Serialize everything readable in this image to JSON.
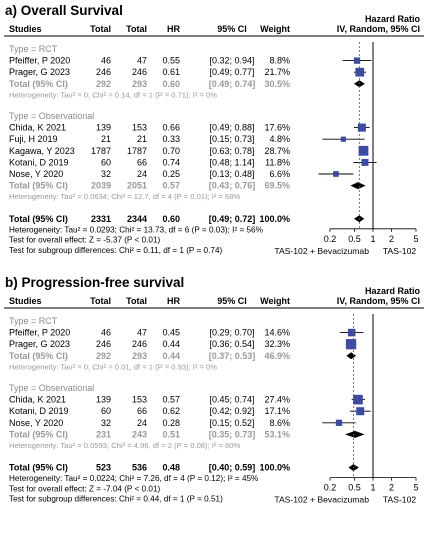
{
  "chart_data": [
    {
      "type": "forest",
      "title": "a) Overall Survival",
      "headers": {
        "studies": "Studies",
        "total_exp": "Total",
        "total_ctrl": "Total",
        "hr": "HR",
        "ci": "95% CI",
        "weight": "Weight",
        "plot_line1": "Hazard Ratio",
        "plot_line2": "IV, Random, 95% CI"
      },
      "groups": [
        {
          "label": "Type = RCT",
          "studies": [
            {
              "name": "Pfeiffer, P 2020",
              "n1": "46",
              "n2": "47",
              "hr_text": "0.55",
              "ci_text": "[0.32; 0.94]",
              "weight_text": "8.8%",
              "hr": 0.55,
              "lo": 0.32,
              "hi": 0.94,
              "weight": 8.8
            },
            {
              "name": "Prager, G 2023",
              "n1": "246",
              "n2": "246",
              "hr_text": "0.61",
              "ci_text": "[0.49; 0.77]",
              "weight_text": "21.7%",
              "hr": 0.61,
              "lo": 0.49,
              "hi": 0.77,
              "weight": 21.7
            }
          ],
          "subtotal": {
            "name": "Total (95% CI)",
            "n1": "292",
            "n2": "293",
            "hr_text": "0.60",
            "ci_text": "[0.49; 0.74]",
            "weight_text": "30.5%",
            "hr": 0.6,
            "lo": 0.49,
            "hi": 0.74
          },
          "heterogeneity": "Heterogeneity: Tau² = 0; Chi² = 0.14, df = 1 (P = 0.71); I² = 0%"
        },
        {
          "label": "Type = Observational",
          "studies": [
            {
              "name": "Chida, K 2021",
              "n1": "139",
              "n2": "153",
              "hr_text": "0.66",
              "ci_text": "[0.49; 0.88]",
              "weight_text": "17.6%",
              "hr": 0.66,
              "lo": 0.49,
              "hi": 0.88,
              "weight": 17.6
            },
            {
              "name": "Fuji, H 2019",
              "n1": "21",
              "n2": "21",
              "hr_text": "0.33",
              "ci_text": "[0.15; 0.73]",
              "weight_text": "4.8%",
              "hr": 0.33,
              "lo": 0.15,
              "hi": 0.73,
              "weight": 4.8
            },
            {
              "name": "Kagawa, Y 2023",
              "n1": "1787",
              "n2": "1787",
              "hr_text": "0.70",
              "ci_text": "[0.63; 0.78]",
              "weight_text": "28.7%",
              "hr": 0.7,
              "lo": 0.63,
              "hi": 0.78,
              "weight": 28.7
            },
            {
              "name": "Kotani, D 2019",
              "n1": "60",
              "n2": "66",
              "hr_text": "0.74",
              "ci_text": "[0.48; 1.14]",
              "weight_text": "11.8%",
              "hr": 0.74,
              "lo": 0.48,
              "hi": 1.14,
              "weight": 11.8
            },
            {
              "name": "Nose, Y 2020",
              "n1": "32",
              "n2": "24",
              "hr_text": "0.25",
              "ci_text": "[0.13; 0.48]",
              "weight_text": "6.6%",
              "hr": 0.25,
              "lo": 0.13,
              "hi": 0.48,
              "weight": 6.6
            }
          ],
          "subtotal": {
            "name": "Total (95% CI)",
            "n1": "2039",
            "n2": "2051",
            "hr_text": "0.57",
            "ci_text": "[0.43; 0.76]",
            "weight_text": "69.5%",
            "hr": 0.57,
            "lo": 0.43,
            "hi": 0.76
          },
          "heterogeneity": "Heterogeneity: Tau² = 0.0634; Chi² = 12.7, df = 4 (P = 0.01); I² = 68%"
        }
      ],
      "overall": {
        "name": "Total (95% CI)",
        "n1": "2331",
        "n2": "2344",
        "hr_text": "0.60",
        "ci_text": "[0.49; 0.72]",
        "weight_text": "100.0%",
        "hr": 0.6,
        "lo": 0.49,
        "hi": 0.72
      },
      "footer": [
        "Heterogeneity: Tau² = 0.0293; Chi² = 13.73, df = 6 (P = 0.03); I² = 56%",
        "Test for overall effect: Z = -5.37 (P < 0.01)",
        "Test for subgroup differences: Chi² = 0.11, df = 1 (P = 0.74)"
      ],
      "axis": {
        "scale": "log",
        "range": [
          0.2,
          5
        ],
        "ticks": [
          0.2,
          0.5,
          1,
          2,
          5
        ],
        "tick_labels": [
          "0.2",
          "0.5",
          "1",
          "2",
          "5"
        ]
      },
      "favours": {
        "left": "TAS-102 + Bevacizumab",
        "right": "TAS-102"
      }
    },
    {
      "type": "forest",
      "title": "b) Progression-free survival",
      "headers": {
        "studies": "Studies",
        "total_exp": "Total",
        "total_ctrl": "Total",
        "hr": "HR",
        "ci": "95% CI",
        "weight": "Weight",
        "plot_line1": "Hazard Ratio",
        "plot_line2": "IV, Random, 95% CI"
      },
      "groups": [
        {
          "label": "Type = RCT",
          "studies": [
            {
              "name": "Pfeiffer, P 2020",
              "n1": "46",
              "n2": "47",
              "hr_text": "0.45",
              "ci_text": "[0.29; 0.70]",
              "weight_text": "14.6%",
              "hr": 0.45,
              "lo": 0.29,
              "hi": 0.7,
              "weight": 14.6
            },
            {
              "name": "Prager, G 2023",
              "n1": "246",
              "n2": "246",
              "hr_text": "0.44",
              "ci_text": "[0.36; 0.54]",
              "weight_text": "32.3%",
              "hr": 0.44,
              "lo": 0.36,
              "hi": 0.54,
              "weight": 32.3
            }
          ],
          "subtotal": {
            "name": "Total (95% CI)",
            "n1": "292",
            "n2": "293",
            "hr_text": "0.44",
            "ci_text": "[0.37; 0.53]",
            "weight_text": "46.9%",
            "hr": 0.44,
            "lo": 0.37,
            "hi": 0.53
          },
          "heterogeneity": "Heterogeneity: Tau² = 0; Chi² = 0.01, df = 1 (P = 0.93); I² = 0%"
        },
        {
          "label": "Type = Observational",
          "studies": [
            {
              "name": "Chida, K 2021",
              "n1": "139",
              "n2": "153",
              "hr_text": "0.57",
              "ci_text": "[0.45; 0.74]",
              "weight_text": "27.4%",
              "hr": 0.57,
              "lo": 0.45,
              "hi": 0.74,
              "weight": 27.4
            },
            {
              "name": "Kotani, D 2019",
              "n1": "60",
              "n2": "66",
              "hr_text": "0.62",
              "ci_text": "[0.42; 0.92]",
              "weight_text": "17.1%",
              "hr": 0.62,
              "lo": 0.42,
              "hi": 0.92,
              "weight": 17.1
            },
            {
              "name": "Nose, Y 2020",
              "n1": "32",
              "n2": "24",
              "hr_text": "0.28",
              "ci_text": "[0.15; 0.52]",
              "weight_text": "8.6%",
              "hr": 0.28,
              "lo": 0.15,
              "hi": 0.52,
              "weight": 8.6
            }
          ],
          "subtotal": {
            "name": "Total (95% CI)",
            "n1": "231",
            "n2": "243",
            "hr_text": "0.51",
            "ci_text": "[0.35; 0.73]",
            "weight_text": "53.1%",
            "hr": 0.51,
            "lo": 0.35,
            "hi": 0.73
          },
          "heterogeneity": "Heterogeneity: Tau² = 0.0593; Chi² = 4.96, df = 2 (P = 0.08); I² = 60%"
        }
      ],
      "overall": {
        "name": "Total (95% CI)",
        "n1": "523",
        "n2": "536",
        "hr_text": "0.48",
        "ci_text": "[0.40; 0.59]",
        "weight_text": "100.0%",
        "hr": 0.48,
        "lo": 0.4,
        "hi": 0.59
      },
      "footer": [
        "Heterogeneity: Tau² = 0.0224; Chi² = 7.26, df = 4 (P = 0.12); I² = 45%",
        "Test for overall effect: Z = -7.04 (P < 0.01)",
        "Test for subgroup differences: Chi² = 0.44, df = 1 (P = 0.51)"
      ],
      "axis": {
        "scale": "log",
        "range": [
          0.2,
          5
        ],
        "ticks": [
          0.2,
          0.5,
          1,
          2,
          5
        ],
        "tick_labels": [
          "0.2",
          "0.5",
          "1",
          "2",
          "5"
        ]
      },
      "favours": {
        "left": "TAS-102 + Bevacizumab",
        "right": "TAS-102"
      }
    }
  ],
  "colors": {
    "square": "#3b4ba6",
    "diamond": "#000000",
    "group_label": "#8a8a8a",
    "subtotal_text": "#9a9a9a",
    "header_rule": "#000000"
  }
}
